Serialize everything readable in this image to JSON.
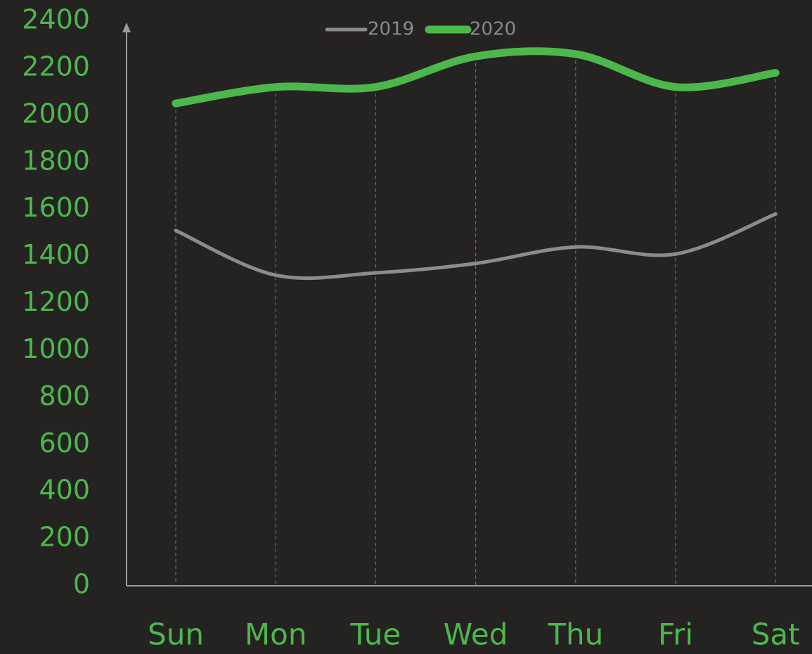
{
  "chart_data": {
    "type": "line",
    "categories": [
      "Sun",
      "Mon",
      "Tue",
      "Wed",
      "Thu",
      "Fri",
      "Sat"
    ],
    "series": [
      {
        "name": "2019",
        "color": "#8c8c8c",
        "values": [
          1510,
          1320,
          1330,
          1370,
          1440,
          1410,
          1580
        ]
      },
      {
        "name": "2020",
        "color": "#4cb84c",
        "values": [
          2050,
          2120,
          2120,
          2250,
          2260,
          2120,
          2180
        ]
      }
    ],
    "ylim": [
      0,
      2400
    ],
    "yticks": [
      0,
      200,
      400,
      600,
      800,
      1000,
      1200,
      1400,
      1600,
      1800,
      2000,
      2200,
      2400
    ]
  }
}
